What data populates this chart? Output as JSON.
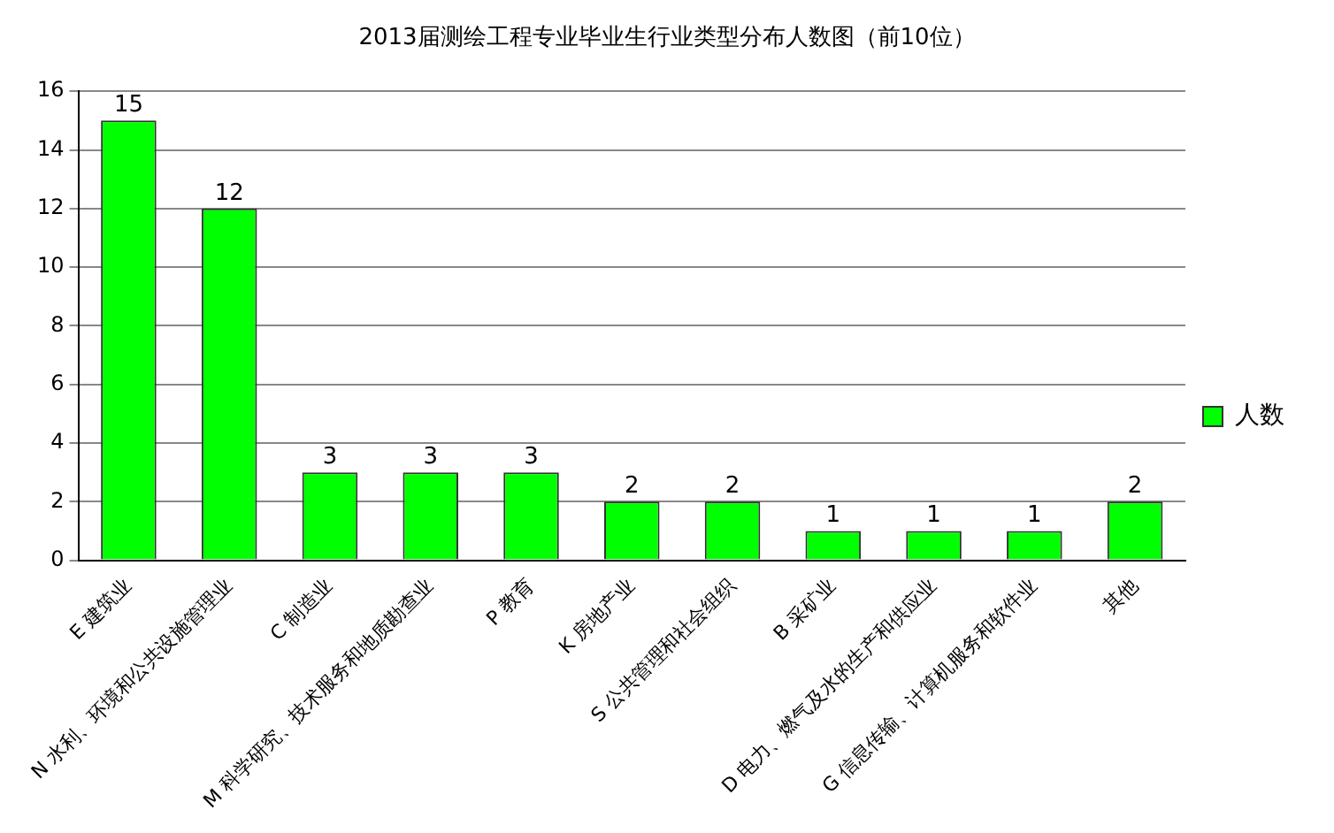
{
  "chart_data": {
    "type": "bar",
    "title": "2013届测绘工程专业毕业生行业类型分布人数图（前10位）",
    "categories": [
      "E 建筑业",
      "N 水利、环境和公共设施管理业",
      "C 制造业",
      "M 科学研究、技术服务和地质勘查业",
      "P 教育",
      "K 房地产业",
      "S 公共管理和社会组织",
      "B 采矿业",
      "D 电力、燃气及水的生产和供应业",
      "G 信息传输、计算机服务和软件业",
      "其他"
    ],
    "series": [
      {
        "name": "人数",
        "color": "#00ff00",
        "values": [
          15,
          12,
          3,
          3,
          3,
          2,
          2,
          1,
          1,
          1,
          2
        ]
      }
    ],
    "ylim": [
      0,
      16
    ],
    "yticks": [
      0,
      2,
      4,
      6,
      8,
      10,
      12,
      14,
      16
    ],
    "grid": "y",
    "legend": "right",
    "data_labels": true
  }
}
